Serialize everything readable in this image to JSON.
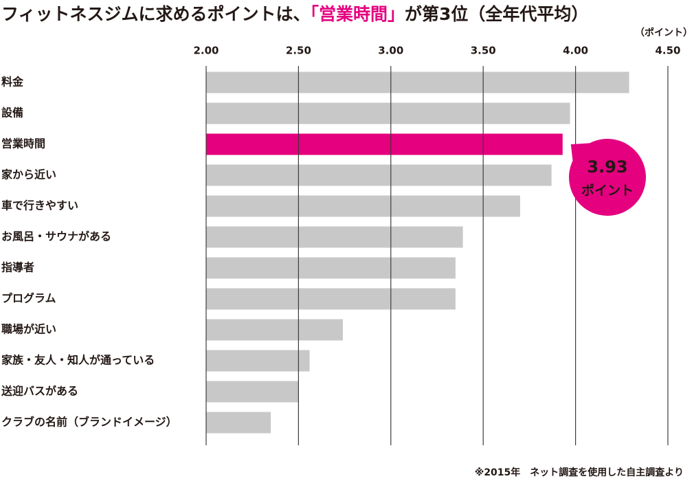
{
  "chart_data": {
    "type": "bar",
    "title": [
      "フィットネスジムに求めるポイントは、",
      "「営業時間」",
      "が第3位（全年代平均）"
    ],
    "unit_label": "（ポイント）",
    "categories": [
      "料金",
      "設備",
      "営業時間",
      "家から近い",
      "車で行きやすい",
      "お風呂・サウナがある",
      "指導者",
      "プログラム",
      "職場が近い",
      "家族・友人・知人が通っている",
      "送迎バスがある",
      "クラブの名前（ブランドイメージ）"
    ],
    "values": [
      4.29,
      3.97,
      3.93,
      3.87,
      3.7,
      3.39,
      3.35,
      3.35,
      2.74,
      2.56,
      2.5,
      2.35
    ],
    "color": "#c8c8c8",
    "highlight_index": 2,
    "highlight_color": "#e4007f",
    "callout_unit": "ポイント",
    "xlim": [
      2,
      4.5
    ],
    "xticks": [
      {
        "value": 2,
        "label": "2.00"
      },
      {
        "value": 2.5,
        "label": "2.50"
      },
      {
        "value": 3,
        "label": "3.00"
      },
      {
        "value": 3.5,
        "label": "3.50"
      },
      {
        "value": 4,
        "label": "4.00"
      },
      {
        "value": 4.5,
        "label": "4.50"
      }
    ],
    "grid": true,
    "footnote": "※2015年　ネット調査を使用した自主調査より"
  }
}
